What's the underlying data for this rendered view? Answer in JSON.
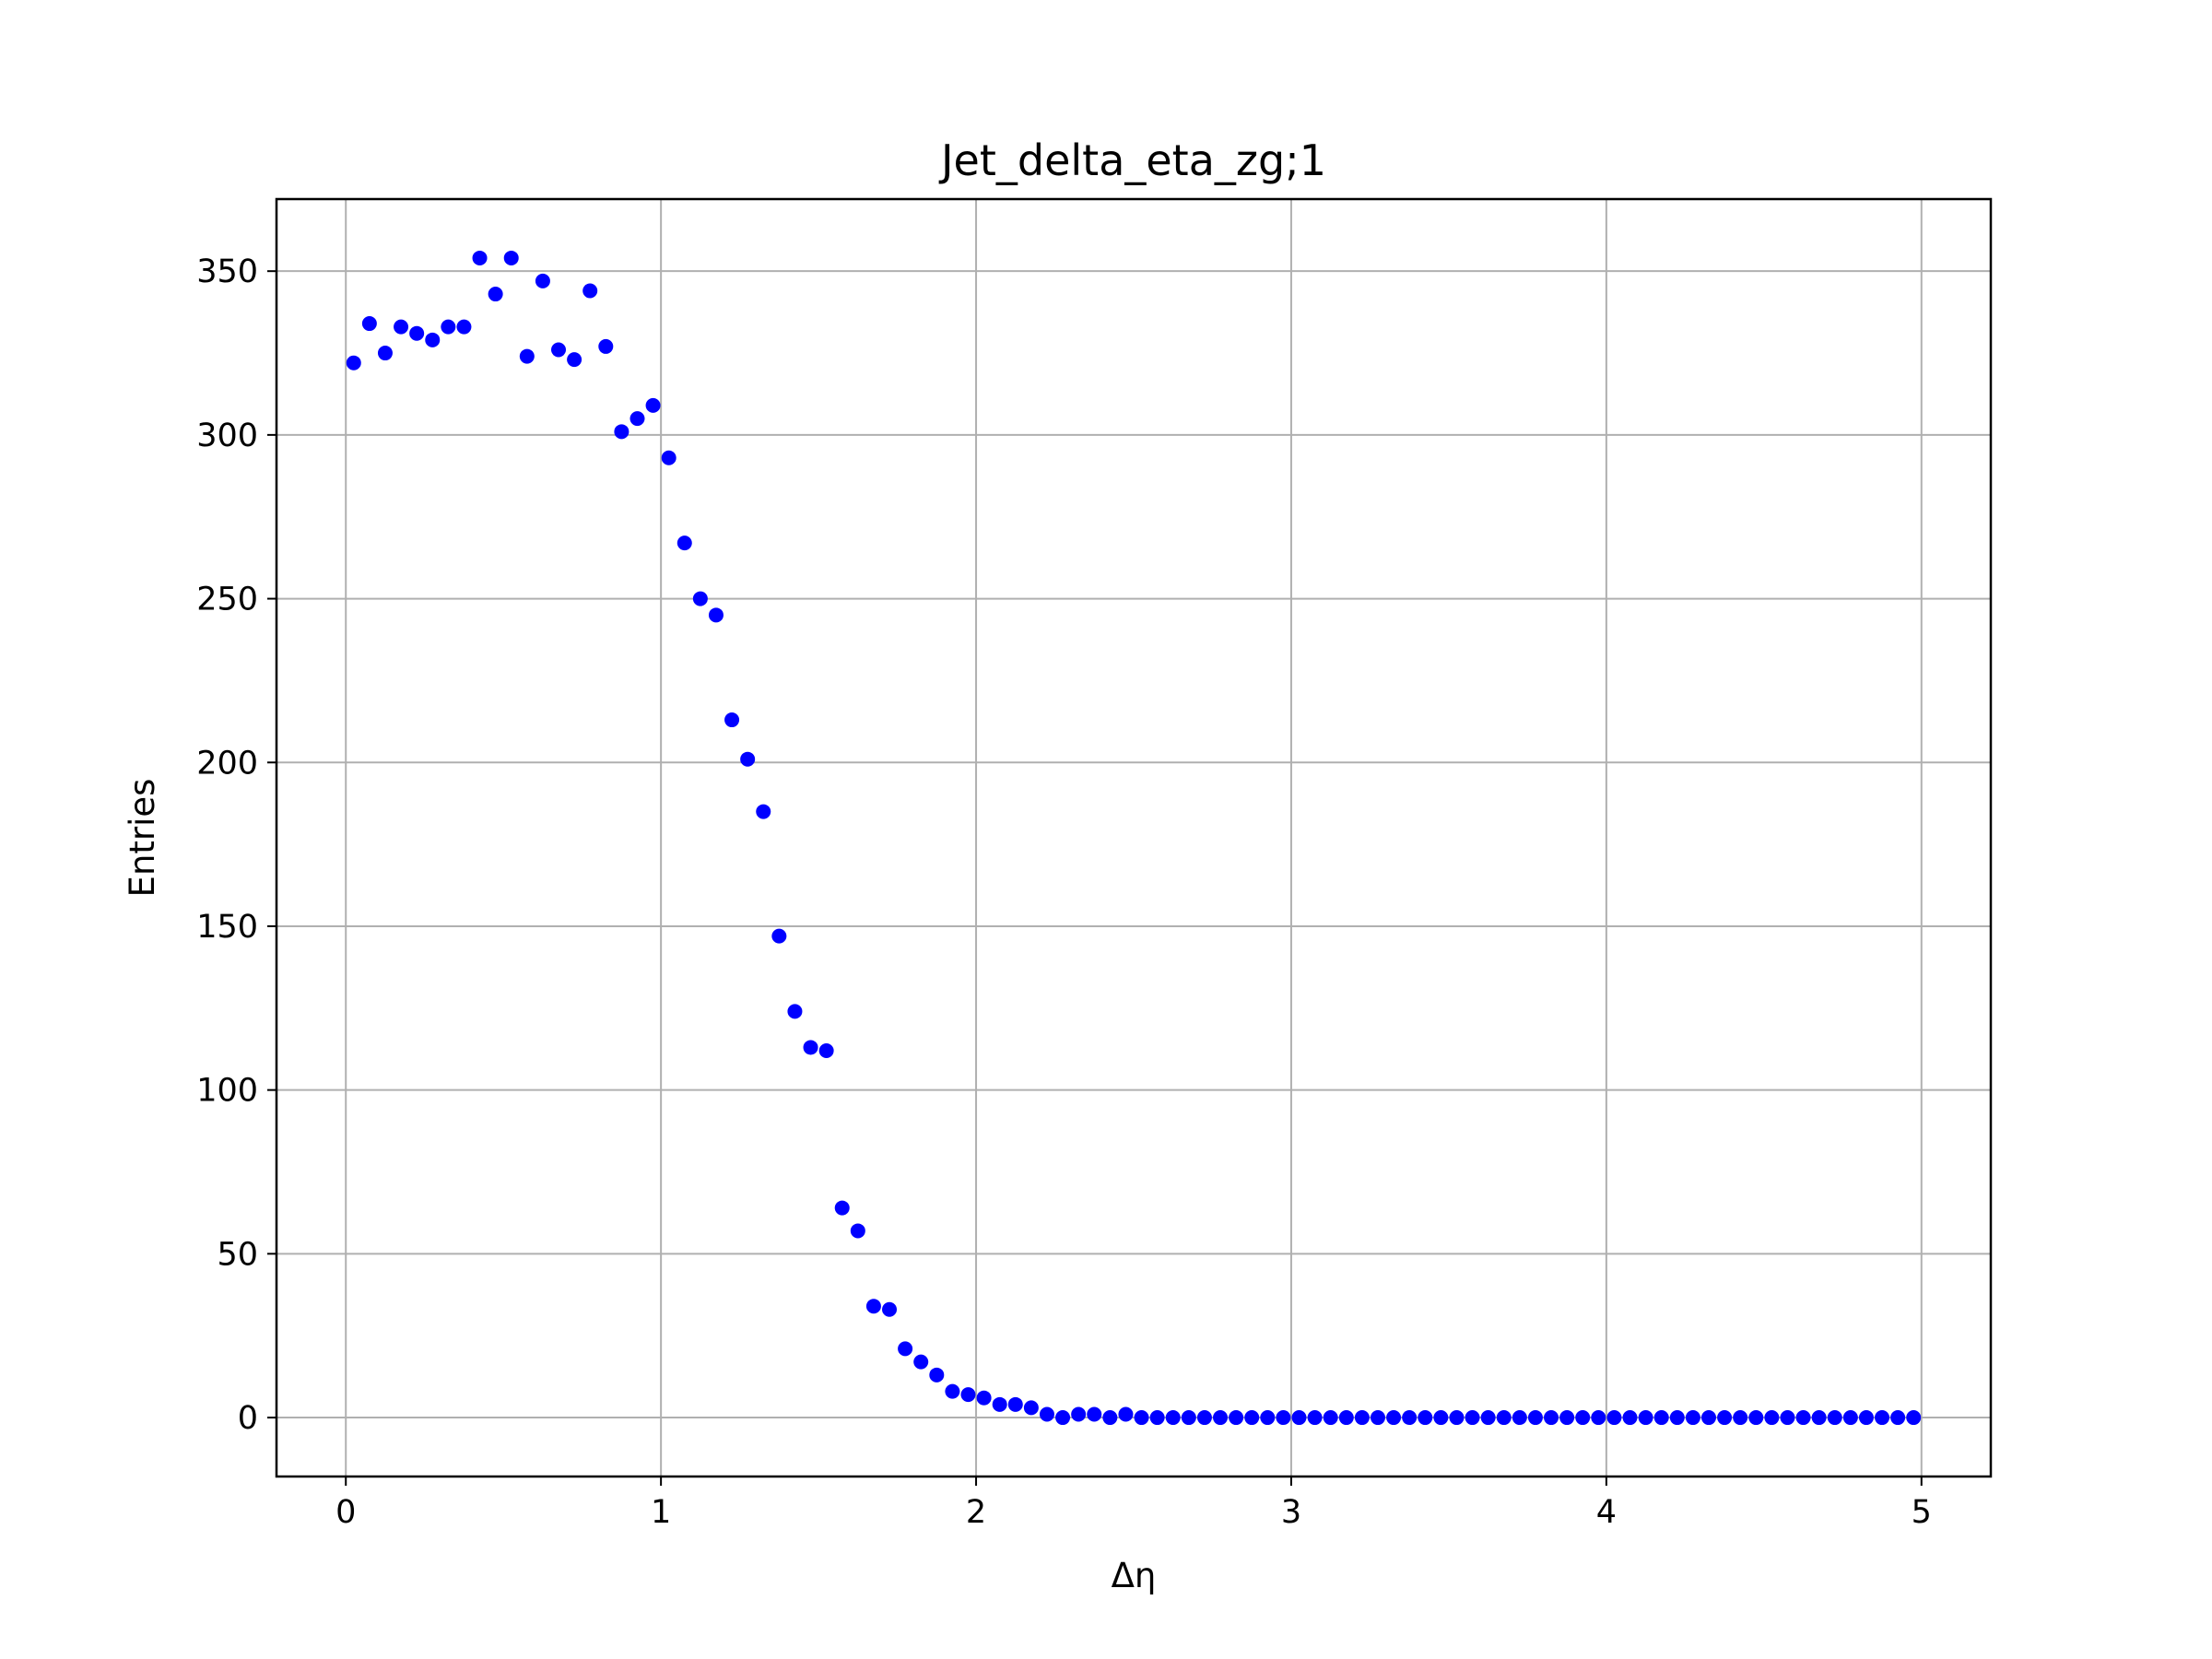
{
  "chart_data": {
    "type": "scatter",
    "title": "Jet_delta_eta_zg;1",
    "xlabel": "Δη",
    "ylabel": "Entries",
    "xlim": [
      -0.22,
      5.22
    ],
    "ylim": [
      -18,
      372
    ],
    "x_ticks": [
      0,
      1,
      2,
      3,
      4,
      5
    ],
    "y_ticks": [
      0,
      50,
      100,
      150,
      200,
      250,
      300,
      350
    ],
    "grid": true,
    "legend": "none",
    "marker_color": "#0000ff",
    "series": [
      {
        "x": [
          0.025,
          0.075,
          0.125,
          0.175,
          0.225,
          0.275,
          0.325,
          0.375,
          0.425,
          0.475,
          0.525,
          0.575,
          0.625,
          0.675,
          0.725,
          0.775,
          0.825,
          0.875,
          0.925,
          0.975,
          1.025,
          1.075,
          1.125,
          1.175,
          1.225,
          1.275,
          1.325,
          1.375,
          1.425,
          1.475,
          1.525,
          1.575,
          1.625,
          1.675,
          1.725,
          1.775,
          1.825,
          1.875,
          1.925,
          1.975,
          2.025,
          2.075,
          2.125,
          2.175,
          2.225,
          2.275,
          2.325,
          2.375,
          2.425,
          2.475,
          2.525,
          2.575,
          2.625,
          2.675,
          2.725,
          2.775,
          2.825,
          2.875,
          2.925,
          2.975,
          3.025,
          3.075,
          3.125,
          3.175,
          3.225,
          3.275,
          3.325,
          3.375,
          3.425,
          3.475,
          3.525,
          3.575,
          3.625,
          3.675,
          3.725,
          3.775,
          3.825,
          3.875,
          3.925,
          3.975,
          4.025,
          4.075,
          4.125,
          4.175,
          4.225,
          4.275,
          4.325,
          4.375,
          4.425,
          4.475,
          4.525,
          4.575,
          4.625,
          4.675,
          4.725,
          4.775,
          4.825,
          4.875,
          4.925,
          4.975
        ],
        "y": [
          322,
          334,
          325,
          333,
          331,
          329,
          333,
          333,
          354,
          343,
          354,
          324,
          347,
          326,
          323,
          344,
          327,
          301,
          305,
          309,
          293,
          267,
          250,
          245,
          213,
          201,
          185,
          147,
          124,
          113,
          112,
          64,
          57,
          34,
          33,
          21,
          17,
          13,
          8,
          7,
          6,
          4,
          4,
          3,
          1,
          0,
          1,
          1,
          0,
          1,
          0,
          0,
          0,
          0,
          0,
          0,
          0,
          0,
          0,
          0,
          0,
          0,
          0,
          0,
          0,
          0,
          0,
          0,
          0,
          0,
          0,
          0,
          0,
          0,
          0,
          0,
          0,
          0,
          0,
          0,
          0,
          0,
          0,
          0,
          0,
          0,
          0,
          0,
          0,
          0,
          0,
          0,
          0,
          0,
          0,
          0,
          0,
          0,
          0,
          0
        ]
      }
    ]
  }
}
